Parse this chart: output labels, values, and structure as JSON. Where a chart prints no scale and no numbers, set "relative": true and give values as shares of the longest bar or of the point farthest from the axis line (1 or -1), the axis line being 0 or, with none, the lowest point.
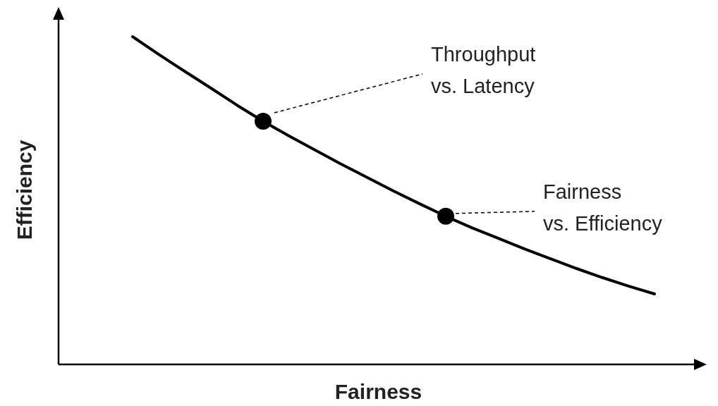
{
  "chart_data": {
    "type": "line",
    "relative": true,
    "xlabel": "Fairness",
    "ylabel": "Efficiency",
    "categories": [
      null,
      null,
      null,
      null,
      null,
      null,
      null,
      null,
      null,
      null,
      null,
      null,
      null,
      null,
      null,
      null,
      null,
      null,
      null,
      null,
      null
    ],
    "series": [
      {
        "color": "#000000",
        "values": [
          1,
          0.946,
          0.894,
          0.843,
          0.791,
          0.742,
          0.697,
          0.654,
          0.611,
          0.57,
          0.529,
          0.49,
          0.452,
          0.417,
          0.385,
          0.353,
          0.323,
          0.293,
          0.265,
          0.239,
          0.215
        ]
      }
    ],
    "annotations": [
      "Throughput\nvs. Latency",
      "Fairness\nvs. Efficiency"
    ]
  }
}
